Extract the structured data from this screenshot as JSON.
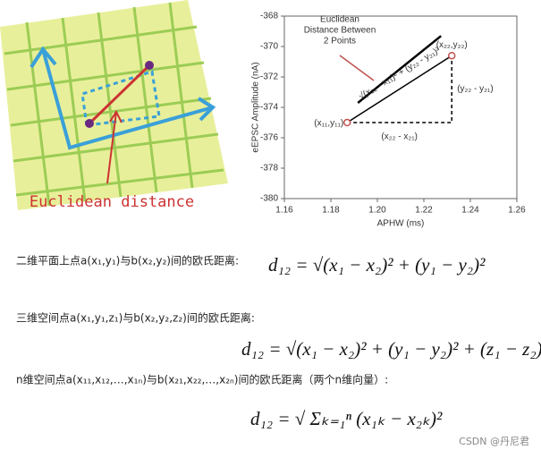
{
  "illustration": {
    "caption": "Euclidean distance"
  },
  "chart_data": {
    "type": "scatter",
    "x": [
      1.187,
      1.232
    ],
    "values": [
      -375,
      -370.6
    ],
    "color": "#c0504d",
    "point_labels": [
      "(x₁₁,y₁₁)",
      "(x₂₂,y₂₂)"
    ],
    "xlabel": "APHW (ms)",
    "ylabel": "eEPSC Amplitude (nA)",
    "xlim": [
      1.16,
      1.26
    ],
    "xticks": [
      1.16,
      1.18,
      {
        "value": 1.2,
        "label": "1.20"
      },
      1.22,
      1.24,
      1.26
    ],
    "ylim": [
      -380,
      -368
    ],
    "yticks": [
      -368,
      -370,
      -372,
      -374,
      -376,
      -378,
      -380
    ],
    "annotations": [
      "Euclidean",
      "Distance Between",
      "2 Points",
      "√(x₂₂ - x₁₁)² + (y₂₂ - y₂₁)²",
      "(y₂₂ - y₂₁)",
      "(x₂₂ - x₂₁)"
    ]
  },
  "document": {
    "lines": [
      "二维平面上点a(x₁,y₁)与b(x₂,y₂)间的欧氏距离:",
      "三维空间点a(x₁,y₁,z₁)与b(x₂,y₂,z₂)间的欧氏距离:",
      "n维空间点a(x₁₁,x₁₂,…,x₁ₙ)与b(x₂₁,x₂₂,…,x₂ₙ)间的欧氏距离（两个n维向量）:"
    ],
    "formulas": [
      "d₁₂ = √(x₁ − x₂)² + (y₁ − y₂)²",
      "d₁₂ = √(x₁ − x₂)² + (y₁ − y₂)² + (z₁ − z₂)²",
      "d₁₂ = √ Σₖ₌₁ⁿ (x₁ₖ − x₂ₖ)²"
    ]
  },
  "watermark": "CSDN @丹尼君"
}
